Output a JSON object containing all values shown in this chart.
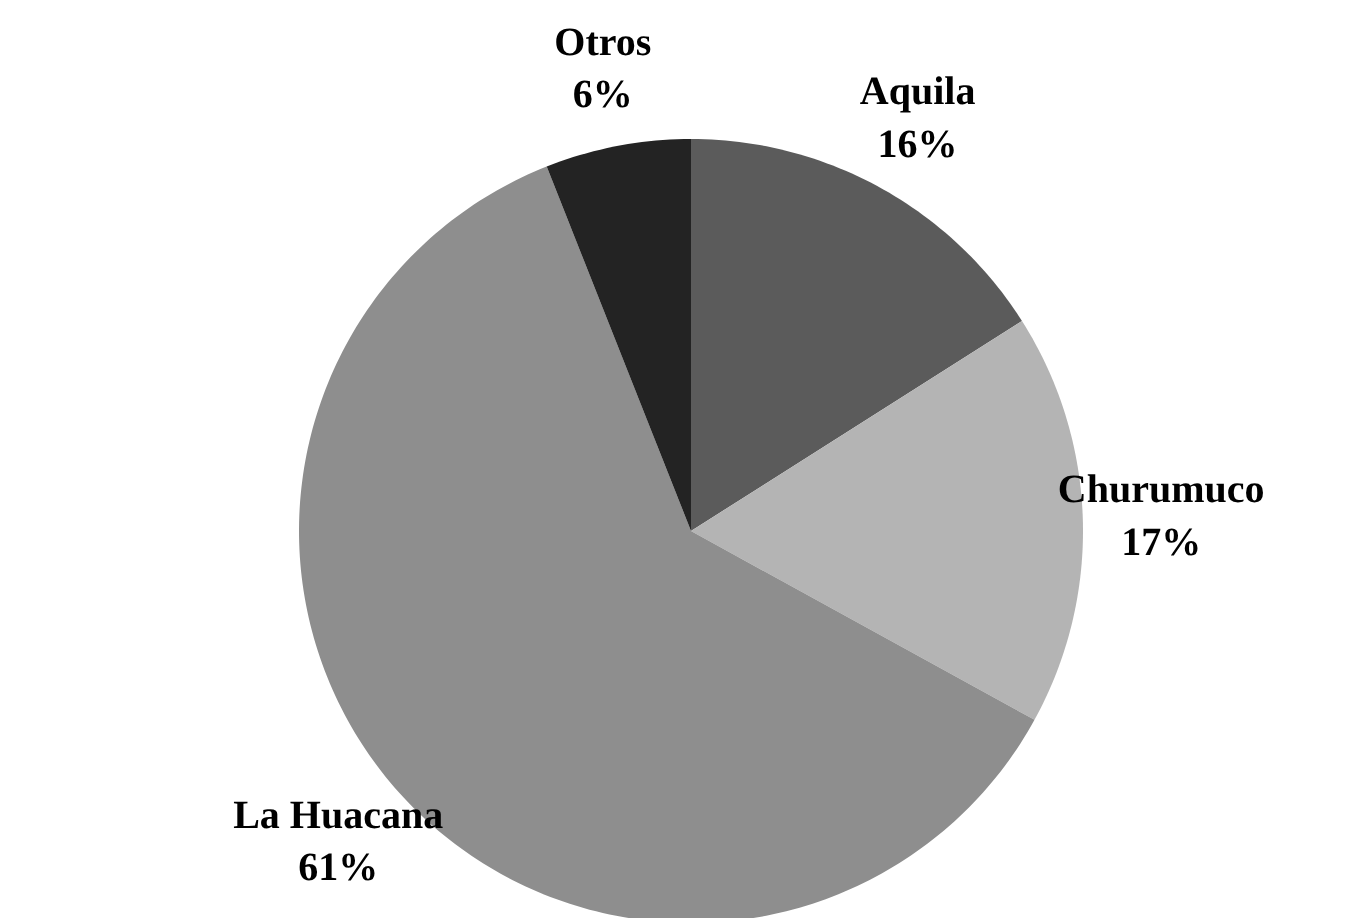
{
  "chart_data": {
    "type": "pie",
    "categories": [
      "Aquila",
      "Churumuco",
      "La Huacana",
      "Otros"
    ],
    "values": [
      16,
      17,
      61,
      6
    ],
    "value_labels": [
      "16%",
      "17%",
      "61%",
      "6%"
    ],
    "colors": [
      "#5b5b5b",
      "#b4b4b4",
      "#8e8e8e",
      "#232323"
    ]
  }
}
